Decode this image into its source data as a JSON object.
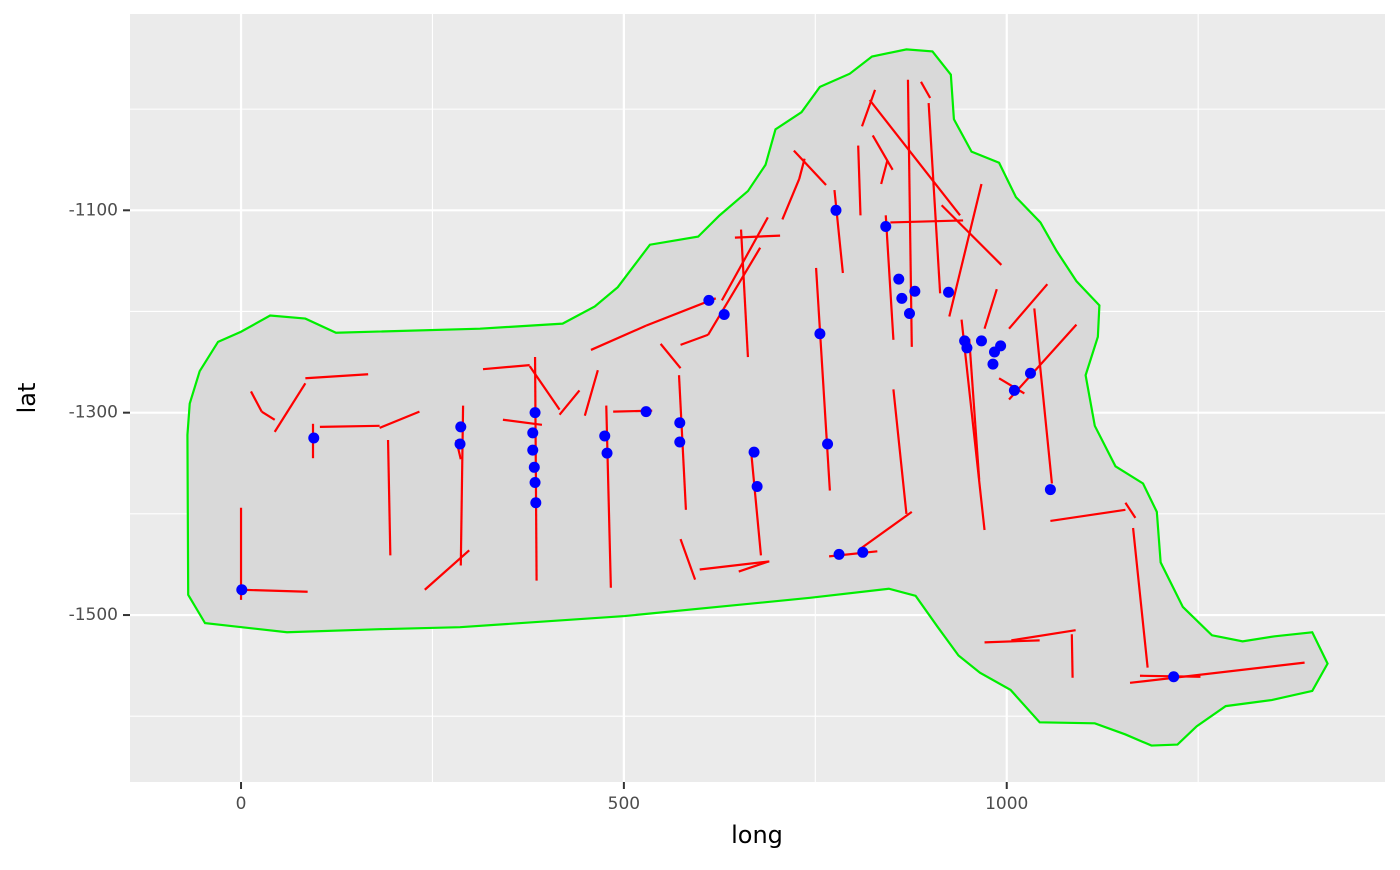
{
  "chart_data": {
    "type": "layered",
    "x_label": "long",
    "y_label": "lat",
    "xlim": [
      -145,
      1494
    ],
    "ylim": [
      -1665,
      -906
    ],
    "xticks": [
      0,
      500,
      1000
    ],
    "yticks": [
      -1500,
      -1300,
      -1100
    ],
    "grid": true,
    "layers": [
      {
        "type": "polygon",
        "color": "#00ee00",
        "fill": "#d9d9d9",
        "x": [
          -70,
          -67,
          -54,
          -30,
          0,
          38,
          84,
          124,
          312,
          420,
          462,
          492,
          534,
          597,
          625,
          662,
          685,
          698,
          732,
          756,
          795,
          824,
          869,
          903,
          927,
          931,
          954,
          990,
          1012,
          1044,
          1065,
          1091,
          1121,
          1119,
          1103,
          1115,
          1142,
          1178,
          1196,
          1201,
          1230,
          1268,
          1308,
          1350,
          1399,
          1419,
          1399,
          1346,
          1286,
          1248,
          1223,
          1189,
          1155,
          1115,
          1043,
          1005,
          965,
          937,
          910,
          881,
          846,
          743,
          501,
          286,
          181,
          60,
          -47,
          -69
        ],
        "y": [
          -1322,
          -1291,
          -1259,
          -1230,
          -1220,
          -1204,
          -1207,
          -1221,
          -1217,
          -1212,
          -1195,
          -1176,
          -1134,
          -1126,
          -1105,
          -1081,
          -1055,
          -1020,
          -1003,
          -978,
          -965,
          -948,
          -941,
          -943,
          -966,
          -1010,
          -1042,
          -1053,
          -1087,
          -1112,
          -1140,
          -1170,
          -1194,
          -1225,
          -1263,
          -1313,
          -1353,
          -1370,
          -1398,
          -1448,
          -1492,
          -1520,
          -1526,
          -1521,
          -1517,
          -1548,
          -1575,
          -1584,
          -1590,
          -1610,
          -1628,
          -1629,
          -1618,
          -1607,
          -1606,
          -1574,
          -1557,
          -1540,
          -1512,
          -1481,
          -1474,
          -1483,
          -1501,
          -1512,
          -1514,
          -1517,
          -1508,
          -1480
        ]
      },
      {
        "type": "segment",
        "color": "#ff0000",
        "x": [
          0,
          0,
          13,
          27,
          44,
          84,
          94,
          103,
          181,
          192,
          240,
          290,
          281,
          316,
          384,
          377,
          342,
          416,
          466,
          477,
          486,
          457,
          529,
          548,
          572,
          574,
          599,
          650,
          574,
          610,
          628,
          653,
          645,
          666,
          707,
          722,
          729,
          751,
          775,
          768,
          808,
          806,
          811,
          821,
          825,
          836,
          842,
          852,
          871,
          888,
          898,
          848,
          915,
          967,
          941,
          951,
          971,
          990,
          1003,
          1003,
          1036,
          1057,
          1155,
          1165,
          1161,
          1174,
          971,
          1006,
          1085
        ],
        "y": [
          -1394,
          -1475,
          -1279,
          -1299,
          -1319,
          -1266,
          -1311,
          -1314,
          -1315,
          -1327,
          -1475,
          -1293,
          -1327,
          -1257,
          -1245,
          -1254,
          -1307,
          -1302,
          -1258,
          -1293,
          -1299,
          -1238,
          -1214,
          -1232,
          -1263,
          -1425,
          -1455,
          -1457,
          -1233,
          -1223,
          -1189,
          -1119,
          -1127,
          -1337,
          -1109,
          -1041,
          -1069,
          -1157,
          -1080,
          -1442,
          -1435,
          -1036,
          -1017,
          -991,
          -1026,
          -1074,
          -1105,
          -1277,
          -971,
          -973,
          -994,
          -1112,
          -1095,
          -1074,
          -1208,
          -1227,
          -1217,
          -1266,
          -1217,
          -1287,
          -1197,
          -1407,
          -1389,
          -1414,
          -1567,
          -1560,
          -1527,
          -1525,
          -1519
        ],
        "xend": [
          0,
          87,
          27,
          44,
          84,
          166,
          94,
          181,
          233,
          195,
          298,
          287,
          287,
          377,
          386,
          416,
          393,
          442,
          449,
          483,
          537,
          529,
          620,
          574,
          581,
          593,
          690,
          689,
          610,
          678,
          688,
          662,
          704,
          679,
          729,
          764,
          736,
          769,
          786,
          831,
          876,
          809,
          828,
          939,
          851,
          844,
          852,
          869,
          876,
          900,
          913,
          943,
          993,
          925,
          971,
          964,
          987,
          1023,
          1053,
          1091,
          1059,
          1155,
          1168,
          1184,
          1389,
          1253,
          1043,
          1090,
          1086
        ],
        "yend": [
          -1485,
          -1477,
          -1299,
          -1307,
          -1271,
          -1262,
          -1345,
          -1313,
          -1299,
          -1441,
          -1436,
          -1451,
          -1346,
          -1253,
          -1466,
          -1297,
          -1312,
          -1278,
          -1303,
          -1473,
          -1298,
          -1214,
          -1187,
          -1256,
          -1396,
          -1465,
          -1447,
          -1447,
          -1223,
          -1137,
          -1107,
          -1245,
          -1125,
          -1441,
          -1069,
          -1075,
          -1049,
          -1377,
          -1162,
          -1437,
          -1398,
          -1105,
          -981,
          -1105,
          -1060,
          -1051,
          -1228,
          -1400,
          -1235,
          -989,
          -1182,
          -1110,
          -1154,
          -1205,
          -1416,
          -1366,
          -1178,
          -1281,
          -1173,
          -1213,
          -1370,
          -1396,
          -1404,
          -1552,
          -1547,
          -1561,
          -1525,
          -1515,
          -1562
        ]
      },
      {
        "type": "point",
        "color": "#0000ff",
        "x": [
          1,
          95,
          287,
          286,
          384,
          381,
          381,
          383,
          384,
          385,
          475,
          478,
          529,
          573,
          573,
          611,
          631,
          670,
          674,
          756,
          766,
          777,
          781,
          812,
          842,
          859,
          863,
          873,
          880,
          924,
          945,
          948,
          967,
          982,
          984,
          992,
          1010,
          1031,
          1057,
          1218
        ],
        "y": [
          -1475,
          -1325,
          -1314,
          -1331,
          -1300,
          -1320,
          -1337,
          -1354,
          -1369,
          -1389,
          -1323,
          -1340,
          -1299,
          -1310,
          -1329,
          -1189,
          -1203,
          -1339,
          -1373,
          -1222,
          -1331,
          -1100,
          -1440,
          -1438,
          -1116,
          -1168,
          -1187,
          -1202,
          -1180,
          -1181,
          -1229,
          -1236,
          -1229,
          -1252,
          -1240,
          -1234,
          -1278,
          -1261,
          -1376,
          -1561
        ]
      }
    ]
  }
}
